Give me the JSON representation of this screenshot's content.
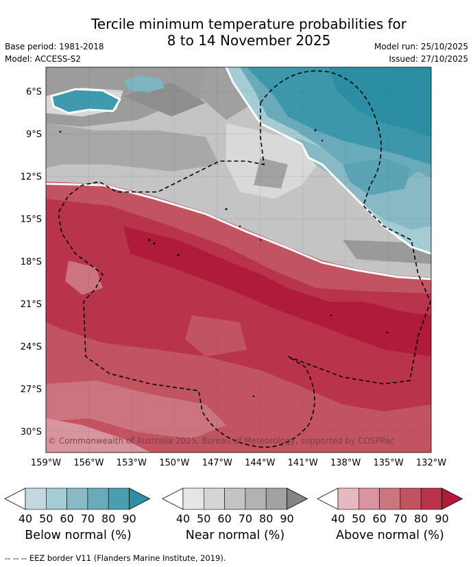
{
  "header": {
    "title_line1": "Tercile minimum temperature probabilities for",
    "title_line2": "8 to 14 November 2025",
    "base_period": "Base period: 1981-2018",
    "model": "Model: ACCESS-S2",
    "model_run": "Model run: 25/10/2025",
    "issued": "Issued: 27/10/2025"
  },
  "chart_data": {
    "type": "heatmap",
    "title": "Tercile minimum temperature probabilities for 8 to 14 November 2025",
    "x_axis": {
      "ticks": [
        "159°W",
        "156°W",
        "153°W",
        "150°W",
        "147°W",
        "144°W",
        "141°W",
        "138°W",
        "135°W",
        "132°W"
      ],
      "range": [
        -159,
        -132
      ]
    },
    "y_axis": {
      "ticks": [
        "6°S",
        "9°S",
        "12°S",
        "15°S",
        "18°S",
        "21°S",
        "24°S",
        "27°S",
        "30°S"
      ],
      "range": [
        -31.5,
        -4.3
      ]
    },
    "grid": true,
    "regions": [
      {
        "category": "Below normal",
        "location": "north-west near 155°W 7°S",
        "level": 80
      },
      {
        "category": "Below normal",
        "location": "north-east 134–141°W 5–17°S",
        "level": 80
      },
      {
        "category": "Near normal",
        "location": "northern band 6–19°S",
        "level": 60
      },
      {
        "category": "Above normal",
        "location": "south of 13–20°S",
        "level": 80
      }
    ],
    "copyright": "© Commonwealth of Australia 2025, Bureau of Meteorology, supported by COSPPac"
  },
  "colorbars": [
    {
      "label": "Below normal (%)",
      "ticks": [
        "40",
        "50",
        "60",
        "70",
        "80",
        "90"
      ],
      "colors": [
        "#ffffff",
        "#c3d9df",
        "#a6ccd3",
        "#88b9c5",
        "#69abbb",
        "#4a9eb0",
        "#2d8fa5"
      ]
    },
    {
      "label": "Near normal (%)",
      "ticks": [
        "40",
        "50",
        "60",
        "70",
        "80",
        "90"
      ],
      "colors": [
        "#ffffff",
        "#e6e6e6",
        "#d5d5d5",
        "#c4c4c4",
        "#b3b3b3",
        "#a2a2a2",
        "#848484"
      ]
    },
    {
      "label": "Above normal (%)",
      "ticks": [
        "40",
        "50",
        "60",
        "70",
        "80",
        "90"
      ],
      "colors": [
        "#ffffff",
        "#e6b8bf",
        "#d9959f",
        "#cc7480",
        "#c25462",
        "#b9344a",
        "#b4193a"
      ]
    }
  ],
  "footer": "--  --  -- EEZ border V11 (Flanders Marine Institute, 2019)."
}
